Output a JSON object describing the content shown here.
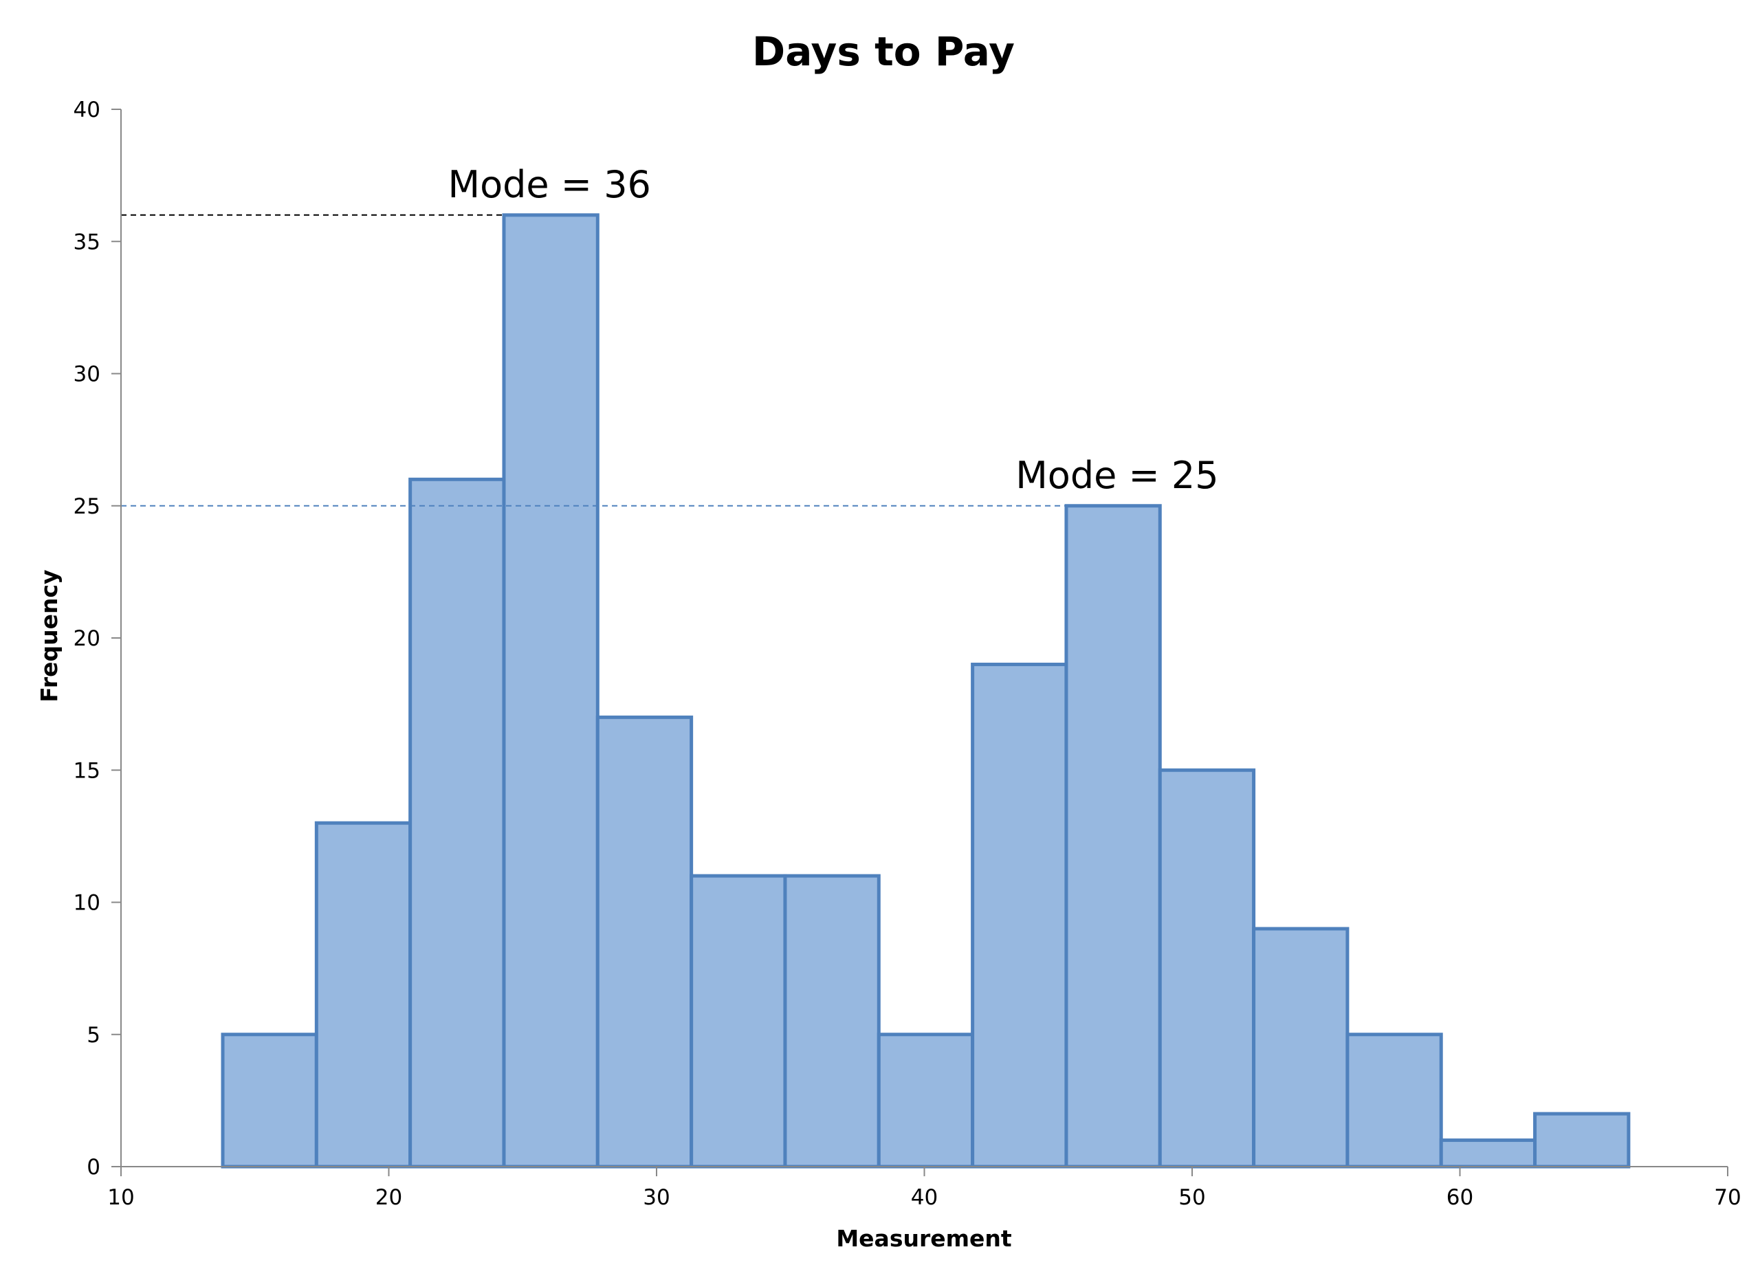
{
  "chart_data": {
    "type": "bar",
    "title": "Days to Pay",
    "xlabel": "Measurement",
    "ylabel": "Frequency",
    "xlim": [
      10,
      70
    ],
    "ylim": [
      0,
      40
    ],
    "x_ticks": [
      10,
      20,
      30,
      40,
      50,
      60,
      70
    ],
    "y_ticks": [
      0,
      5,
      10,
      15,
      20,
      25,
      30,
      35,
      40
    ],
    "grid": false,
    "bin_width": 3.5,
    "bins": [
      {
        "start": 13.8,
        "value": 5
      },
      {
        "start": 17.3,
        "value": 13
      },
      {
        "start": 20.8,
        "value": 26
      },
      {
        "start": 24.3,
        "value": 36
      },
      {
        "start": 27.8,
        "value": 17
      },
      {
        "start": 31.3,
        "value": 11
      },
      {
        "start": 34.8,
        "value": 11
      },
      {
        "start": 38.3,
        "value": 5
      },
      {
        "start": 41.8,
        "value": 19
      },
      {
        "start": 45.3,
        "value": 25
      },
      {
        "start": 48.8,
        "value": 15
      },
      {
        "start": 52.3,
        "value": 9
      },
      {
        "start": 55.8,
        "value": 5
      },
      {
        "start": 59.3,
        "value": 1
      },
      {
        "start": 62.8,
        "value": 2
      }
    ],
    "bar_fill": "#97b8e0",
    "bar_stroke": "#4f81bd",
    "annotations": [
      {
        "text": "Mode = 36",
        "y": 36,
        "x_start": 10,
        "x_end": 24.3,
        "line_color": "#000000",
        "label_x": 26
      },
      {
        "text": "Mode = 25",
        "y": 25,
        "x_start": 10,
        "x_end": 45.3,
        "line_color": "#4f81bd",
        "label_x": 47.2
      }
    ]
  }
}
